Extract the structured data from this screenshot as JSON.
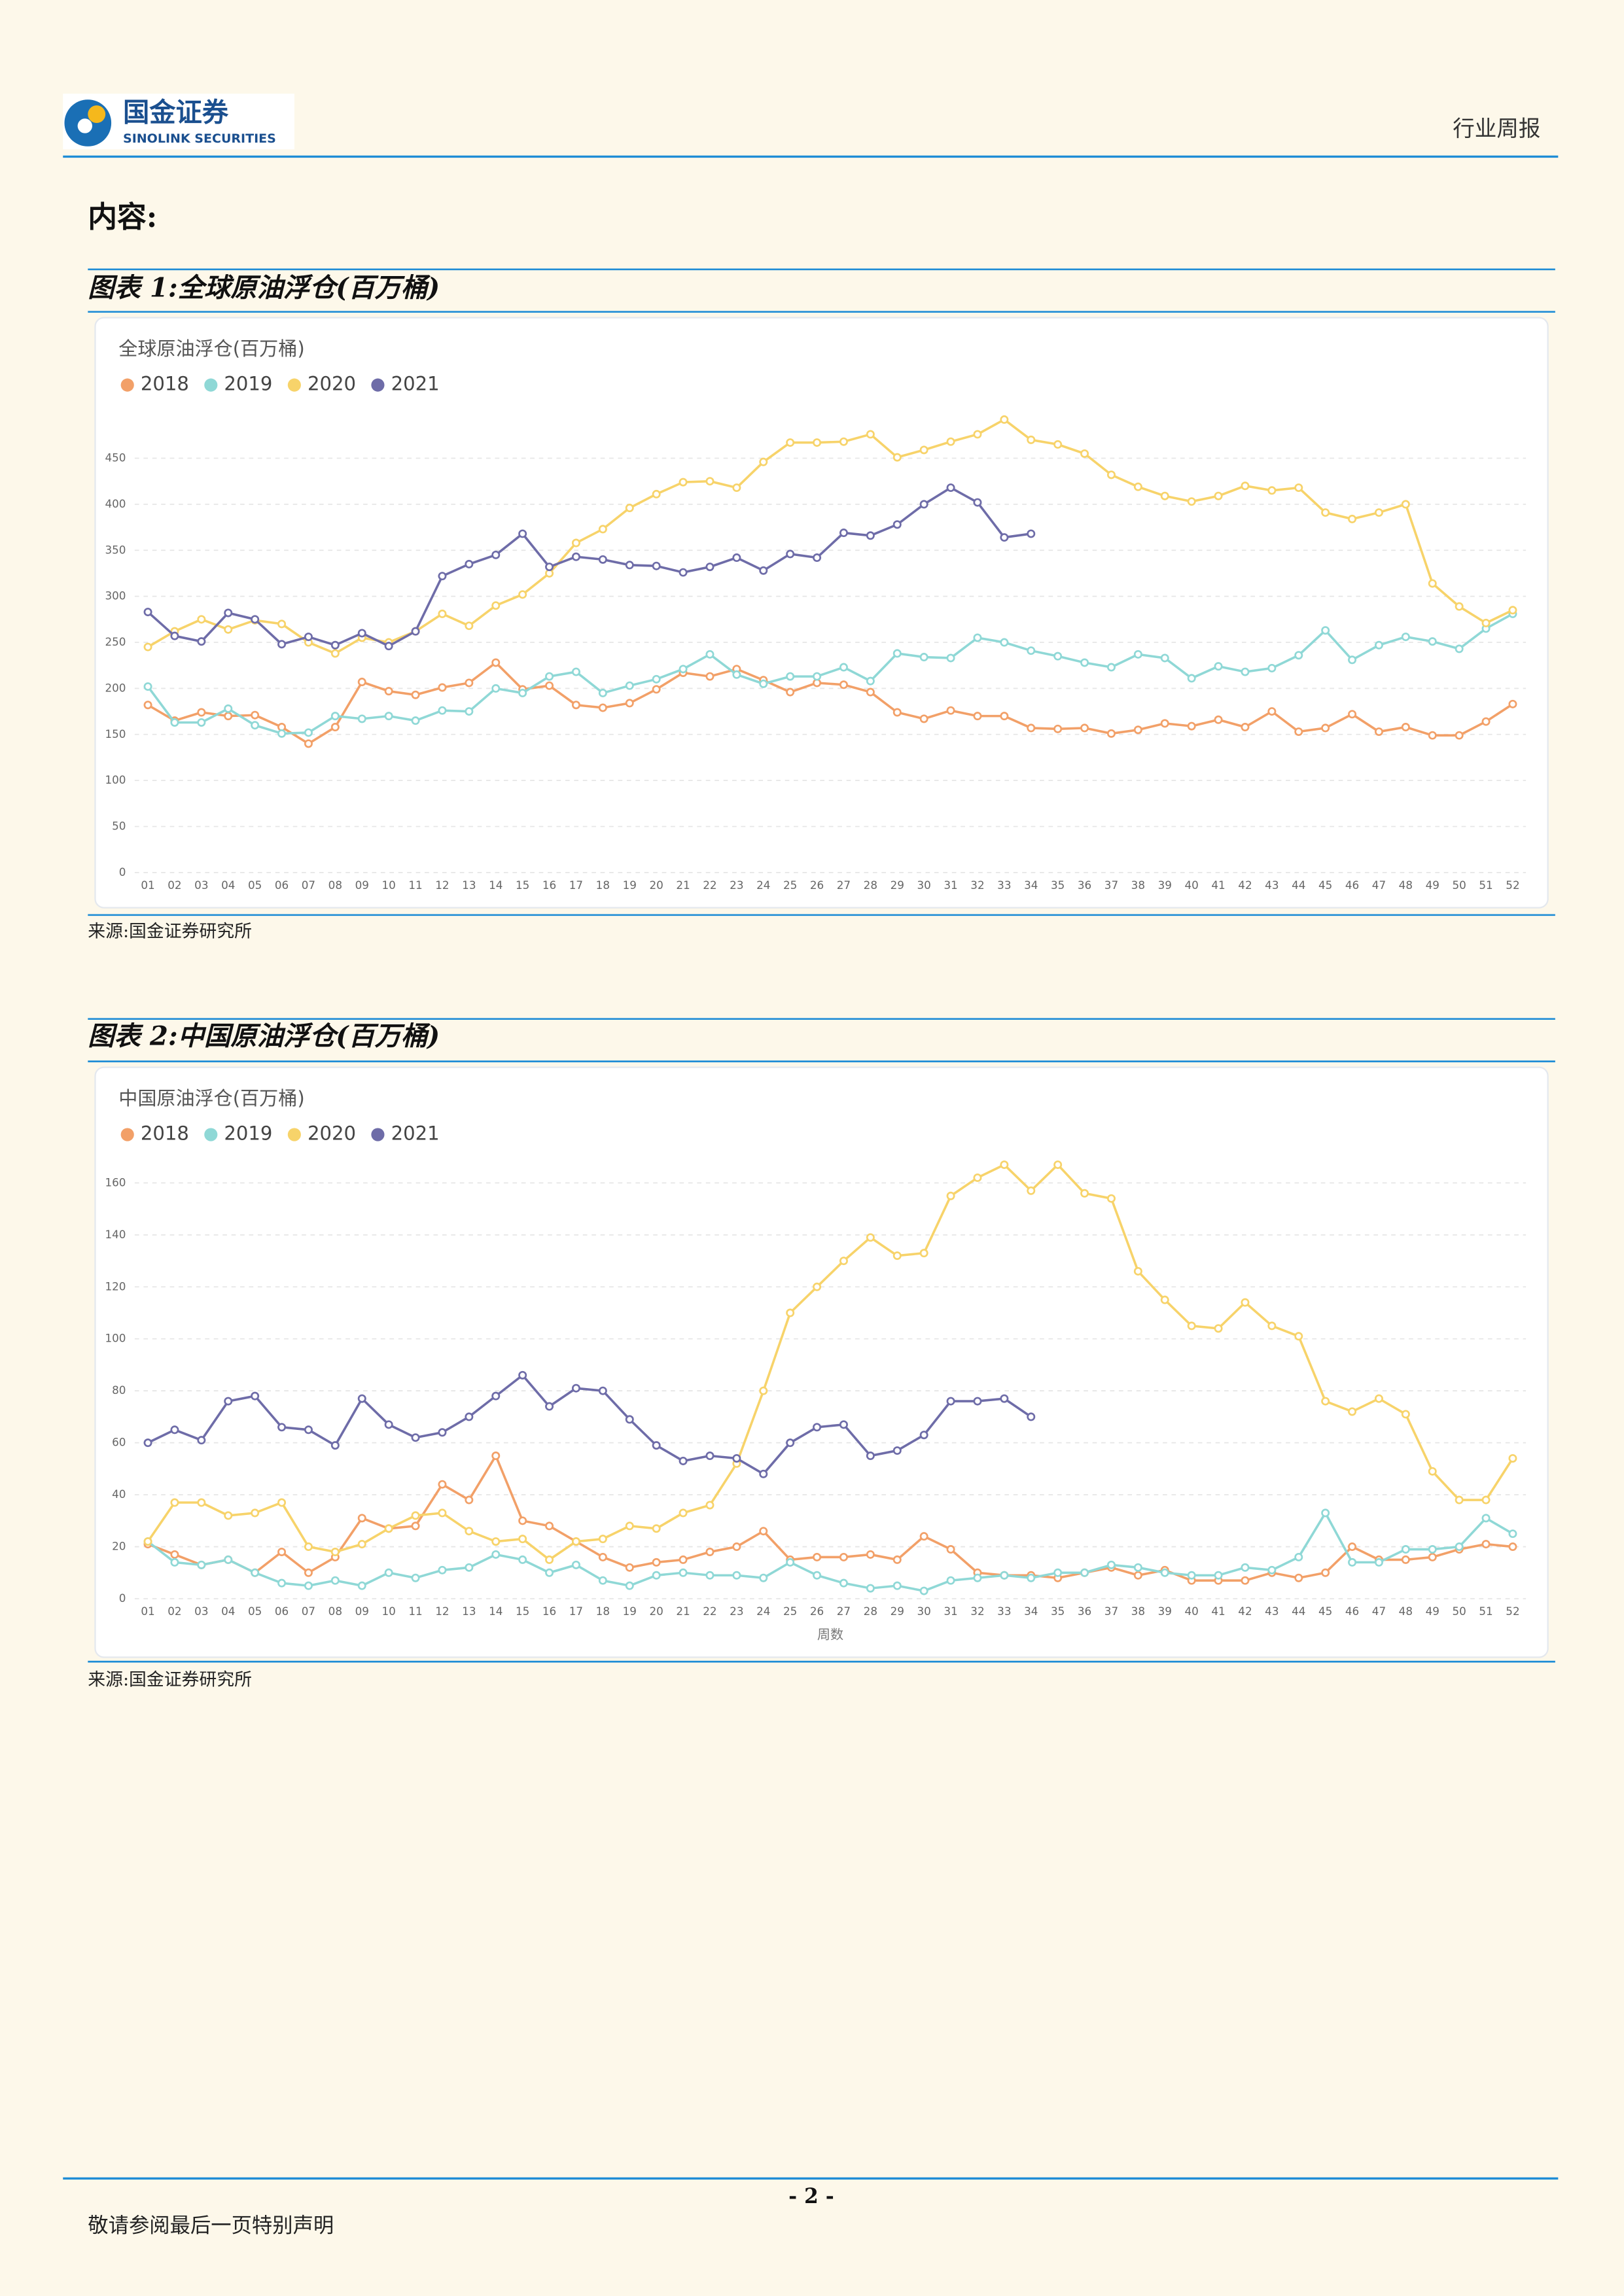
{
  "header": {
    "company": "国金证券",
    "company_en": "SINOLINK SECURITIES",
    "report_type": "行业周报"
  },
  "heading": "内容:",
  "figures": [
    {
      "caption": "图表 1:全球原油浮仓(百万桶)",
      "source": "来源:国金证券研究所"
    },
    {
      "caption": "图表 2:中国原油浮仓(百万桶)",
      "source": "来源:国金证券研究所"
    }
  ],
  "chart_data": [
    {
      "type": "line",
      "title": "全球原油浮仓(百万桶)",
      "categories": [
        "01",
        "02",
        "03",
        "04",
        "05",
        "06",
        "07",
        "08",
        "09",
        "10",
        "11",
        "12",
        "13",
        "14",
        "15",
        "16",
        "17",
        "18",
        "19",
        "20",
        "21",
        "22",
        "23",
        "24",
        "25",
        "26",
        "27",
        "28",
        "29",
        "30",
        "31",
        "32",
        "33",
        "34",
        "35",
        "36",
        "37",
        "38",
        "39",
        "40",
        "41",
        "42",
        "43",
        "44",
        "45",
        "46",
        "47",
        "48",
        "49",
        "50",
        "51",
        "52"
      ],
      "ylim": [
        0,
        450
      ],
      "yticks": [
        0,
        50,
        100,
        150,
        200,
        250,
        300,
        350,
        400,
        450
      ],
      "grid": true,
      "series": [
        {
          "name": "2018",
          "color": "#f2a068",
          "values": [
            182,
            165,
            174,
            170,
            171,
            158,
            140,
            158,
            207,
            197,
            193,
            201,
            206,
            228,
            199,
            203,
            182,
            179,
            184,
            199,
            217,
            213,
            221,
            209,
            196,
            206,
            204,
            196,
            174,
            167,
            176,
            170,
            170,
            157,
            156,
            157,
            151,
            155,
            162,
            159,
            166,
            158,
            175,
            153,
            157,
            172,
            153,
            158,
            149,
            149,
            164,
            183
          ]
        },
        {
          "name": "2019",
          "color": "#8fd8d6",
          "values": [
            202,
            163,
            163,
            178,
            160,
            151,
            152,
            170,
            167,
            170,
            165,
            176,
            175,
            200,
            195,
            213,
            218,
            195,
            203,
            210,
            221,
            237,
            215,
            205,
            213,
            213,
            223,
            208,
            238,
            234,
            233,
            255,
            250,
            241,
            235,
            228,
            223,
            237,
            233,
            211,
            224,
            218,
            222,
            236,
            263,
            231,
            247,
            256,
            251,
            243,
            265,
            281
          ]
        },
        {
          "name": "2020",
          "color": "#f7d36a",
          "values": [
            245,
            262,
            275,
            264,
            274,
            270,
            250,
            238,
            255,
            250,
            262,
            281,
            268,
            290,
            302,
            325,
            358,
            373,
            396,
            411,
            424,
            425,
            418,
            446,
            467,
            467,
            468,
            476,
            451,
            459,
            468,
            476,
            492,
            470,
            465,
            455,
            432,
            419,
            409,
            403,
            409,
            420,
            415,
            418,
            391,
            384,
            391,
            400,
            314,
            289,
            271,
            285
          ]
        },
        {
          "name": "2021",
          "color": "#6e6ca8",
          "values": [
            283,
            257,
            251,
            282,
            275,
            248,
            256,
            247,
            260,
            246,
            262,
            322,
            335,
            345,
            368,
            332,
            343,
            340,
            334,
            333,
            326,
            332,
            342,
            328,
            346,
            342,
            369,
            366,
            378,
            400,
            418,
            402,
            364,
            368,
            null,
            null,
            null,
            null,
            null,
            null,
            null,
            null,
            null,
            null,
            null,
            null,
            null,
            null,
            null,
            null,
            null,
            null
          ]
        }
      ]
    },
    {
      "type": "line",
      "title": "中国原油浮仓(百万桶)",
      "xlabel": "周数",
      "categories": [
        "01",
        "02",
        "03",
        "04",
        "05",
        "06",
        "07",
        "08",
        "09",
        "10",
        "11",
        "12",
        "13",
        "14",
        "15",
        "16",
        "17",
        "18",
        "19",
        "20",
        "21",
        "22",
        "23",
        "24",
        "25",
        "26",
        "27",
        "28",
        "29",
        "30",
        "31",
        "32",
        "33",
        "34",
        "35",
        "36",
        "37",
        "38",
        "39",
        "40",
        "41",
        "42",
        "43",
        "44",
        "45",
        "46",
        "47",
        "48",
        "49",
        "50",
        "51",
        "52"
      ],
      "ylim": [
        0,
        160
      ],
      "yticks": [
        0,
        20,
        40,
        60,
        80,
        100,
        120,
        140,
        160
      ],
      "grid": true,
      "series": [
        {
          "name": "2018",
          "color": "#f2a068",
          "values": [
            21,
            17,
            13,
            15,
            10,
            18,
            10,
            16,
            31,
            27,
            28,
            44,
            38,
            55,
            30,
            28,
            22,
            16,
            12,
            14,
            15,
            18,
            20,
            26,
            15,
            16,
            16,
            17,
            15,
            24,
            19,
            10,
            9,
            9,
            8,
            10,
            12,
            9,
            11,
            7,
            7,
            7,
            10,
            8,
            10,
            20,
            15,
            15,
            16,
            19,
            21,
            20
          ]
        },
        {
          "name": "2019",
          "color": "#8fd8d6",
          "values": [
            22,
            14,
            13,
            15,
            10,
            6,
            5,
            7,
            5,
            10,
            8,
            11,
            12,
            17,
            15,
            10,
            13,
            7,
            5,
            9,
            10,
            9,
            9,
            8,
            14,
            9,
            6,
            4,
            5,
            3,
            7,
            8,
            9,
            8,
            10,
            10,
            13,
            12,
            10,
            9,
            9,
            12,
            11,
            16,
            33,
            14,
            14,
            19,
            19,
            20,
            31,
            25
          ]
        },
        {
          "name": "2020",
          "color": "#f7d36a",
          "values": [
            22,
            37,
            37,
            32,
            33,
            37,
            20,
            18,
            21,
            27,
            32,
            33,
            26,
            22,
            23,
            15,
            22,
            23,
            28,
            27,
            33,
            36,
            52,
            80,
            110,
            120,
            130,
            139,
            132,
            133,
            155,
            162,
            167,
            157,
            167,
            156,
            154,
            126,
            115,
            105,
            104,
            114,
            105,
            101,
            76,
            72,
            77,
            71,
            49,
            38,
            38,
            54
          ]
        },
        {
          "name": "2021",
          "color": "#6e6ca8",
          "values": [
            60,
            65,
            61,
            76,
            78,
            66,
            65,
            59,
            77,
            67,
            62,
            64,
            70,
            78,
            86,
            74,
            81,
            80,
            69,
            59,
            53,
            55,
            54,
            48,
            60,
            66,
            67,
            55,
            57,
            63,
            76,
            76,
            77,
            70,
            null,
            null,
            null,
            null,
            null,
            null,
            null,
            null,
            null,
            null,
            null,
            null,
            null,
            null,
            null,
            null,
            null,
            null
          ]
        }
      ]
    }
  ],
  "footer": {
    "page": "- 2 -",
    "disclaimer": "敬请参阅最后一页特别声明"
  }
}
